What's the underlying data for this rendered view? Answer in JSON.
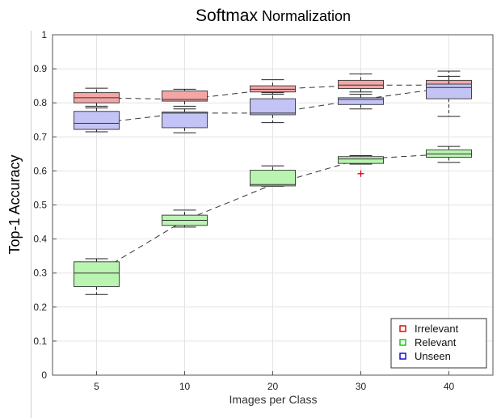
{
  "chart_data": {
    "type": "box",
    "title": "Softmax",
    "subtitle": "Normalization",
    "xlabel": "Images per Class",
    "ylabel": "Top-1 Accuracy",
    "categories": [
      "5",
      "10",
      "20",
      "30",
      "40"
    ],
    "ylim": [
      0,
      1
    ],
    "yticks": [
      "0",
      "0.1",
      "0.2",
      "0.3",
      "0.4",
      "0.5",
      "0.6",
      "0.7",
      "0.8",
      "0.9",
      "1"
    ],
    "grid": true,
    "legend_position": "bottom-right",
    "series": [
      {
        "name": "Irrelevant",
        "color": "#f4a6a6",
        "edge": "#d40000",
        "boxes": [
          {
            "min": 0.785,
            "q1": 0.8,
            "median": 0.815,
            "q3": 0.83,
            "max": 0.843,
            "outliers": []
          },
          {
            "min": 0.79,
            "q1": 0.805,
            "median": 0.81,
            "q3": 0.835,
            "max": 0.84,
            "outliers": []
          },
          {
            "min": 0.825,
            "q1": 0.832,
            "median": 0.84,
            "q3": 0.85,
            "max": 0.868,
            "outliers": []
          },
          {
            "min": 0.832,
            "q1": 0.842,
            "median": 0.852,
            "q3": 0.866,
            "max": 0.885,
            "outliers": []
          },
          {
            "min": 0.838,
            "q1": 0.845,
            "median": 0.852,
            "q3": 0.866,
            "max": 0.878,
            "outliers": []
          }
        ]
      },
      {
        "name": "Relevant",
        "color": "#b9f5b0",
        "edge": "#00c800",
        "boxes": [
          {
            "min": 0.237,
            "q1": 0.26,
            "median": 0.3,
            "q3": 0.333,
            "max": 0.342,
            "outliers": []
          },
          {
            "min": 0.435,
            "q1": 0.44,
            "median": 0.455,
            "q3": 0.47,
            "max": 0.485,
            "outliers": []
          },
          {
            "min": 0.555,
            "q1": 0.556,
            "median": 0.56,
            "q3": 0.602,
            "max": 0.615,
            "outliers": []
          },
          {
            "min": 0.62,
            "q1": 0.622,
            "median": 0.635,
            "q3": 0.642,
            "max": 0.645,
            "outliers": [
              0.592
            ]
          },
          {
            "min": 0.625,
            "q1": 0.64,
            "median": 0.65,
            "q3": 0.662,
            "max": 0.672,
            "outliers": []
          }
        ]
      },
      {
        "name": "Unseen",
        "color": "#c3c3f5",
        "edge": "#0000d0",
        "boxes": [
          {
            "min": 0.715,
            "q1": 0.722,
            "median": 0.74,
            "q3": 0.775,
            "max": 0.79,
            "outliers": []
          },
          {
            "min": 0.712,
            "q1": 0.727,
            "median": 0.77,
            "q3": 0.773,
            "max": 0.782,
            "outliers": []
          },
          {
            "min": 0.742,
            "q1": 0.765,
            "median": 0.77,
            "q3": 0.812,
            "max": 0.83,
            "outliers": []
          },
          {
            "min": 0.782,
            "q1": 0.795,
            "median": 0.81,
            "q3": 0.815,
            "max": 0.825,
            "outliers": []
          },
          {
            "min": 0.76,
            "q1": 0.812,
            "median": 0.845,
            "q3": 0.855,
            "max": 0.893,
            "outliers": []
          }
        ]
      }
    ]
  }
}
